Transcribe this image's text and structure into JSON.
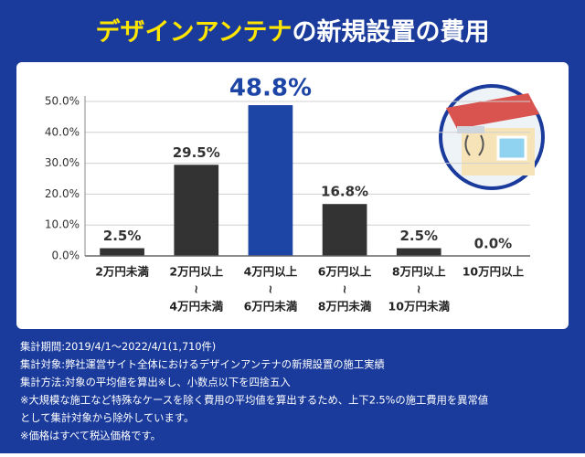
{
  "chart_data": {
    "type": "bar",
    "title": [
      "デザインアンテナ",
      "の新規設置の費用"
    ],
    "categories": [
      [
        "2万円未満"
      ],
      [
        "2万円以上",
        "≀",
        "4万円未満"
      ],
      [
        "4万円以上",
        "≀",
        "6万円未満"
      ],
      [
        "6万円以上",
        "≀",
        "8万円未満"
      ],
      [
        "8万円以上",
        "≀",
        "10万円未満"
      ],
      [
        "10万円以上"
      ]
    ],
    "values": [
      2.5,
      29.5,
      48.8,
      16.8,
      2.5,
      0.0
    ],
    "value_labels": [
      "2.5%",
      "29.5%",
      "48.8%",
      "16.8%",
      "2.5%",
      "0.0%"
    ],
    "colors": [
      "#333333",
      "#333333",
      "#1d45a6",
      "#333333",
      "#333333",
      "#333333"
    ],
    "ylim": [
      0,
      50
    ],
    "yticks": [
      {
        "value": 0,
        "label": "0.0%"
      },
      {
        "value": 10,
        "label": "10.0%"
      },
      {
        "value": 20,
        "label": "20.0%"
      },
      {
        "value": 30,
        "label": "30.0%"
      },
      {
        "value": 40,
        "label": "40.0%"
      },
      {
        "value": 50,
        "label": "50.0%"
      }
    ],
    "grid": true,
    "notes": [
      "集計期間:2019/4/1〜2022/4/1(1,710件)",
      "集計対象:弊社運営サイト全体におけるデザインアンテナの新規設置の施工実績",
      "集計方法:対象の平均値を算出※し、小数点以下を四捨五入",
      "※大規模な施工など特殊なケースを除く費用の平均値を算出するため、上下2.5%の施工費用を異常値",
      "として集計対象から除外しています。",
      "※価格はすべて税込価格です。"
    ]
  }
}
